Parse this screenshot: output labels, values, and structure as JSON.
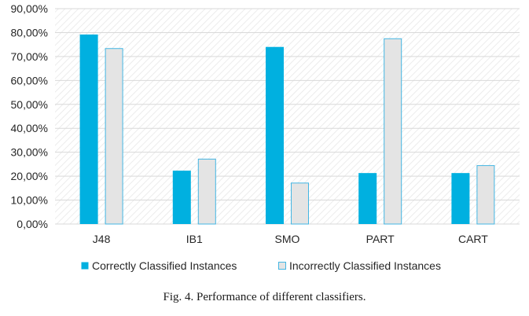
{
  "caption": "Fig. 4. Performance of different classifiers.",
  "colors": {
    "correct": "#00B0E0",
    "incorrect": "#E4E4E4",
    "incorrect_border": "#43B6E3",
    "grid": "#d9d9d9"
  },
  "chart_data": {
    "type": "bar",
    "categories": [
      "J48",
      "IB1",
      "SMO",
      "PART",
      "CART"
    ],
    "series": [
      {
        "name": "Correctly Classified Instances",
        "values": [
          79.2,
          22.3,
          74.0,
          21.3,
          21.3
        ]
      },
      {
        "name": "Incorrectly Classified Instances",
        "values": [
          73.5,
          27.3,
          17.3,
          77.6,
          24.6
        ]
      }
    ],
    "ylim": [
      0,
      90
    ],
    "yticks": [
      "0,00%",
      "10,00%",
      "20,00%",
      "30,00%",
      "40,00%",
      "50,00%",
      "60,00%",
      "70,00%",
      "80,00%",
      "90,00%"
    ],
    "grid": true,
    "legend_position": "bottom"
  }
}
